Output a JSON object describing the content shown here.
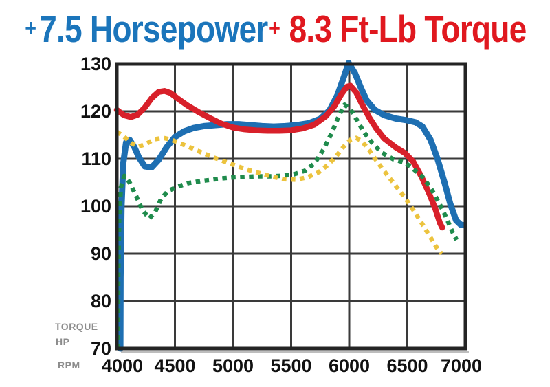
{
  "headline": {
    "plus1": "+",
    "hp_gain": "7.5 Horsepower",
    "plus2": "+",
    "torque_gain": "8.3 Ft-Lb Torque"
  },
  "axis_side_labels": {
    "torque": "TORQUE",
    "hp": "HP",
    "rpm": "RPM"
  },
  "colors": {
    "headline_blue": "#1b75bb",
    "headline_red": "#e0181f",
    "grid": "#3a3a3a",
    "frame": "#242424",
    "tick_text": "#111111",
    "side_label_gray": "#8c8c8c",
    "blue_curve": "#1e6fb2",
    "red_curve": "#d8202a",
    "green_curve": "#1f8b4c",
    "yellow_curve": "#ecc33e"
  },
  "chart_data": {
    "type": "line",
    "title": "+ 7.5 Horsepower + 8.3 Ft-Lb Torque",
    "xlabel": "RPM",
    "ylabel": "TORQUE / HP",
    "xlim": [
      4000,
      7000
    ],
    "ylim": [
      70,
      130
    ],
    "x_ticks": [
      4000,
      4500,
      5000,
      5500,
      6000,
      6500,
      7000
    ],
    "y_ticks": [
      130,
      120,
      110,
      100,
      90,
      80,
      70
    ],
    "grid": true,
    "legend_position": "none",
    "series": [
      {
        "name": "blue-solid-line",
        "color": "#1e6fb2",
        "style": "solid",
        "width": 9,
        "points": [
          [
            4030,
            70
          ],
          [
            4032,
            85
          ],
          [
            4040,
            100
          ],
          [
            4055,
            109
          ],
          [
            4080,
            113.5
          ],
          [
            4110,
            114
          ],
          [
            4150,
            112.5
          ],
          [
            4190,
            110.3
          ],
          [
            4240,
            108.4
          ],
          [
            4300,
            108.2
          ],
          [
            4360,
            109.8
          ],
          [
            4430,
            112.5
          ],
          [
            4500,
            114.6
          ],
          [
            4580,
            115.8
          ],
          [
            4660,
            116.5
          ],
          [
            4750,
            116.9
          ],
          [
            4850,
            117.1
          ],
          [
            4950,
            117.3
          ],
          [
            5050,
            117.3
          ],
          [
            5150,
            117.1
          ],
          [
            5250,
            116.9
          ],
          [
            5350,
            116.8
          ],
          [
            5450,
            116.9
          ],
          [
            5550,
            117.1
          ],
          [
            5650,
            117.5
          ],
          [
            5750,
            118.4
          ],
          [
            5830,
            120.2
          ],
          [
            5900,
            123.5
          ],
          [
            5950,
            127
          ],
          [
            5995,
            130.2
          ],
          [
            6050,
            128
          ],
          [
            6100,
            125
          ],
          [
            6150,
            122.3
          ],
          [
            6220,
            120.3
          ],
          [
            6300,
            119.2
          ],
          [
            6400,
            118.5
          ],
          [
            6500,
            118.1
          ],
          [
            6570,
            117.7
          ],
          [
            6630,
            116.8
          ],
          [
            6700,
            114
          ],
          [
            6760,
            110
          ],
          [
            6820,
            105
          ],
          [
            6870,
            100.5
          ],
          [
            6920,
            97
          ],
          [
            6960,
            96.1
          ],
          [
            6985,
            96
          ]
        ]
      },
      {
        "name": "red-solid-line",
        "color": "#d8202a",
        "style": "solid",
        "width": 8.5,
        "points": [
          [
            4000,
            120.3
          ],
          [
            4060,
            119.2
          ],
          [
            4120,
            118.8
          ],
          [
            4180,
            119.3
          ],
          [
            4240,
            120.8
          ],
          [
            4300,
            122.8
          ],
          [
            4360,
            124.1
          ],
          [
            4410,
            124.3
          ],
          [
            4460,
            123.9
          ],
          [
            4530,
            122.6
          ],
          [
            4610,
            121.2
          ],
          [
            4700,
            119.9
          ],
          [
            4800,
            118.6
          ],
          [
            4900,
            117.4
          ],
          [
            5000,
            116.6
          ],
          [
            5100,
            116.2
          ],
          [
            5200,
            116
          ],
          [
            5300,
            115.9
          ],
          [
            5400,
            115.9
          ],
          [
            5500,
            116
          ],
          [
            5600,
            116.4
          ],
          [
            5700,
            117.2
          ],
          [
            5800,
            119
          ],
          [
            5870,
            121
          ],
          [
            5930,
            123.5
          ],
          [
            5980,
            125.2
          ],
          [
            6010,
            125.4
          ],
          [
            6060,
            124
          ],
          [
            6110,
            121.5
          ],
          [
            6170,
            118.8
          ],
          [
            6230,
            116.5
          ],
          [
            6300,
            114.3
          ],
          [
            6400,
            112.4
          ],
          [
            6480,
            111.2
          ],
          [
            6550,
            109.4
          ],
          [
            6620,
            106.3
          ],
          [
            6690,
            102.6
          ],
          [
            6740,
            99.5
          ],
          [
            6780,
            96.5
          ],
          [
            6800,
            95.5
          ]
        ]
      },
      {
        "name": "green-dotted-line",
        "color": "#1f8b4c",
        "style": "dotted",
        "width": 6.5,
        "points": [
          [
            4010,
            70
          ],
          [
            4012,
            85
          ],
          [
            4020,
            98
          ],
          [
            4035,
            104
          ],
          [
            4065,
            106.4
          ],
          [
            4110,
            105
          ],
          [
            4160,
            102.5
          ],
          [
            4220,
            99.2
          ],
          [
            4280,
            97.4
          ],
          [
            4330,
            98.8
          ],
          [
            4380,
            101.5
          ],
          [
            4440,
            103.2
          ],
          [
            4520,
            104.1
          ],
          [
            4620,
            104.9
          ],
          [
            4720,
            105.3
          ],
          [
            4820,
            105.6
          ],
          [
            4920,
            105.9
          ],
          [
            5020,
            106.1
          ],
          [
            5120,
            106.2
          ],
          [
            5220,
            106.3
          ],
          [
            5320,
            106.3
          ],
          [
            5420,
            106.4
          ],
          [
            5520,
            106.7
          ],
          [
            5620,
            107.5
          ],
          [
            5700,
            109
          ],
          [
            5780,
            112
          ],
          [
            5850,
            115.5
          ],
          [
            5910,
            119
          ],
          [
            5960,
            121.4
          ],
          [
            6010,
            120.5
          ],
          [
            6070,
            118
          ],
          [
            6130,
            115.5
          ],
          [
            6200,
            113.3
          ],
          [
            6280,
            111.3
          ],
          [
            6380,
            109.9
          ],
          [
            6480,
            109.2
          ],
          [
            6560,
            107.7
          ],
          [
            6630,
            106.2
          ],
          [
            6700,
            103.9
          ],
          [
            6770,
            100.9
          ],
          [
            6840,
            97.3
          ],
          [
            6890,
            94.5
          ],
          [
            6925,
            92.9
          ]
        ]
      },
      {
        "name": "yellow-dotted-line",
        "color": "#ecc33e",
        "style": "dotted",
        "width": 6.5,
        "points": [
          [
            4000,
            115.7
          ],
          [
            4060,
            114.7
          ],
          [
            4130,
            113.2
          ],
          [
            4190,
            112.6
          ],
          [
            4250,
            113.1
          ],
          [
            4320,
            114.1
          ],
          [
            4400,
            114.4
          ],
          [
            4470,
            114
          ],
          [
            4550,
            113.2
          ],
          [
            4640,
            112.3
          ],
          [
            4740,
            111.2
          ],
          [
            4840,
            110.2
          ],
          [
            4940,
            109.3
          ],
          [
            5040,
            108.4
          ],
          [
            5140,
            107.6
          ],
          [
            5240,
            106.9
          ],
          [
            5340,
            106.2
          ],
          [
            5440,
            105.7
          ],
          [
            5540,
            105.6
          ],
          [
            5640,
            106.1
          ],
          [
            5740,
            107.2
          ],
          [
            5820,
            108.8
          ],
          [
            5890,
            110.6
          ],
          [
            5950,
            112.5
          ],
          [
            6010,
            114
          ],
          [
            6060,
            114.4
          ],
          [
            6110,
            113.7
          ],
          [
            6170,
            111.9
          ],
          [
            6240,
            109.4
          ],
          [
            6320,
            106.8
          ],
          [
            6400,
            104.3
          ],
          [
            6480,
            101.8
          ],
          [
            6560,
            98.9
          ],
          [
            6640,
            95.8
          ],
          [
            6710,
            93
          ],
          [
            6760,
            91
          ],
          [
            6795,
            90
          ]
        ]
      }
    ]
  }
}
